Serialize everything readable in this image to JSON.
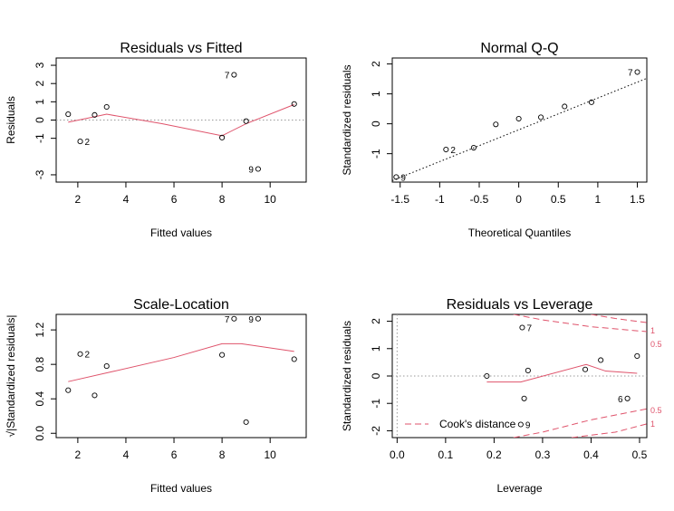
{
  "colors": {
    "smoother": "#DF536B",
    "cook": "#DF536B",
    "reference": "#9a9a9a",
    "points": "#000000"
  },
  "chart_data": [
    {
      "id": "rvf",
      "type": "scatter",
      "title": "Residuals vs Fitted",
      "xlabel": "Fitted values",
      "ylabel": "Residuals",
      "xlim": [
        1.1,
        11.5
      ],
      "ylim": [
        -3.4,
        3.4
      ],
      "x_ticks": [
        2,
        4,
        6,
        8,
        10
      ],
      "y_ticks": [
        -3,
        -1,
        0,
        1,
        2,
        3
      ],
      "points": [
        {
          "x": 1.6,
          "y": 0.32
        },
        {
          "x": 2.1,
          "y": -1.17
        },
        {
          "x": 2.7,
          "y": 0.28
        },
        {
          "x": 3.2,
          "y": 0.72
        },
        {
          "x": 8.0,
          "y": -0.96
        },
        {
          "x": 8.5,
          "y": 2.48
        },
        {
          "x": 9.0,
          "y": -0.06
        },
        {
          "x": 9.5,
          "y": -2.68
        },
        {
          "x": 11.0,
          "y": 0.88
        }
      ],
      "labeled_points": [
        {
          "x": 8.5,
          "y": 2.48,
          "label": "7",
          "side": "left"
        },
        {
          "x": 2.1,
          "y": -1.17,
          "label": "2",
          "side": "right"
        },
        {
          "x": 9.5,
          "y": -2.68,
          "label": "9",
          "side": "left"
        }
      ],
      "smoother": {
        "x": [
          1.6,
          3.2,
          5.5,
          8.0,
          9.0,
          11.0
        ],
        "y": [
          -0.12,
          0.32,
          -0.2,
          -0.86,
          -0.2,
          0.85
        ]
      },
      "reference_line_y": 0
    },
    {
      "id": "qq",
      "type": "scatter",
      "title": "Normal Q-Q",
      "xlabel": "Theoretical Quantiles",
      "ylabel": "Standardized residuals",
      "xlim": [
        -1.6,
        1.62
      ],
      "ylim": [
        -1.95,
        2.2
      ],
      "x_ticks": [
        -1.5,
        -1.0,
        -0.5,
        0.0,
        0.5,
        1.0,
        1.5
      ],
      "y_ticks": [
        -1,
        0,
        1,
        2
      ],
      "points": [
        {
          "x": -1.55,
          "y": -1.78
        },
        {
          "x": -0.92,
          "y": -0.86
        },
        {
          "x": -0.57,
          "y": -0.8
        },
        {
          "x": -0.29,
          "y": -0.02
        },
        {
          "x": 0.0,
          "y": 0.17
        },
        {
          "x": 0.28,
          "y": 0.22
        },
        {
          "x": 0.58,
          "y": 0.58
        },
        {
          "x": 0.92,
          "y": 0.72
        },
        {
          "x": 1.5,
          "y": 1.73
        }
      ],
      "labeled_points": [
        {
          "x": 1.5,
          "y": 1.73,
          "label": "7",
          "side": "left"
        },
        {
          "x": -0.92,
          "y": -0.86,
          "label": "2",
          "side": "right"
        },
        {
          "x": -1.55,
          "y": -1.78,
          "label": "9",
          "side": "right"
        }
      ],
      "qqline": {
        "x": [
          -1.6,
          1.62
        ],
        "y": [
          -1.9,
          1.52
        ]
      }
    },
    {
      "id": "sl",
      "type": "scatter",
      "title": "Scale-Location",
      "xlabel": "Fitted values",
      "ylabel": "√|Standardized residuals|",
      "xlim": [
        1.1,
        11.5
      ],
      "ylim": [
        -0.05,
        1.38
      ],
      "x_ticks": [
        2,
        4,
        6,
        8,
        10
      ],
      "y_ticks": [
        0.0,
        0.4,
        0.8,
        1.2
      ],
      "y_tick_labels": [
        "0.0",
        "0.4",
        "0.8",
        "1.2"
      ],
      "points": [
        {
          "x": 1.6,
          "y": 0.5
        },
        {
          "x": 2.1,
          "y": 0.92
        },
        {
          "x": 2.7,
          "y": 0.44
        },
        {
          "x": 3.2,
          "y": 0.78
        },
        {
          "x": 8.0,
          "y": 0.91
        },
        {
          "x": 8.5,
          "y": 1.33
        },
        {
          "x": 9.0,
          "y": 0.13
        },
        {
          "x": 9.5,
          "y": 1.33
        },
        {
          "x": 11.0,
          "y": 0.86
        }
      ],
      "labeled_points": [
        {
          "x": 8.5,
          "y": 1.33,
          "label": "7",
          "side": "left"
        },
        {
          "x": 2.1,
          "y": 0.92,
          "label": "2",
          "side": "right"
        },
        {
          "x": 9.5,
          "y": 1.33,
          "label": "9",
          "side": "left"
        }
      ],
      "smoother": {
        "x": [
          1.6,
          3.5,
          6.0,
          8.0,
          8.8,
          11.0
        ],
        "y": [
          0.6,
          0.72,
          0.88,
          1.04,
          1.04,
          0.95
        ]
      }
    },
    {
      "id": "rvl",
      "type": "scatter",
      "title": "Residuals vs Leverage",
      "xlabel": "Leverage",
      "ylabel": "Standardized residuals",
      "xlim": [
        -0.01,
        0.515
      ],
      "ylim": [
        -2.25,
        2.25
      ],
      "x_ticks": [
        0.0,
        0.1,
        0.2,
        0.3,
        0.4,
        0.5
      ],
      "x_tick_labels": [
        "0.0",
        "0.1",
        "0.2",
        "0.3",
        "0.4",
        "0.5"
      ],
      "y_ticks": [
        -2,
        -1,
        0,
        1,
        2
      ],
      "points": [
        {
          "x": 0.185,
          "y": 0.0
        },
        {
          "x": 0.258,
          "y": 1.77
        },
        {
          "x": 0.262,
          "y": -0.82
        },
        {
          "x": 0.27,
          "y": 0.2
        },
        {
          "x": 0.388,
          "y": 0.24
        },
        {
          "x": 0.42,
          "y": 0.58
        },
        {
          "x": 0.475,
          "y": -0.82
        },
        {
          "x": 0.495,
          "y": 0.73
        },
        {
          "x": 0.255,
          "y": -1.77
        }
      ],
      "labeled_points": [
        {
          "x": 0.258,
          "y": 1.77,
          "label": "7",
          "side": "right"
        },
        {
          "x": 0.475,
          "y": -0.82,
          "label": "6",
          "side": "left"
        },
        {
          "x": 0.255,
          "y": -1.77,
          "label": "9",
          "side": "right"
        }
      ],
      "smoother": {
        "x": [
          0.185,
          0.255,
          0.39,
          0.43,
          0.495
        ],
        "y": [
          -0.22,
          -0.22,
          0.42,
          0.18,
          0.1
        ]
      },
      "reference_line_y": 0,
      "reference_line_x": 0,
      "cook_lines": [
        {
          "level": "0.5",
          "x": [
            0.24,
            0.3,
            0.4,
            0.515
          ],
          "y": [
            2.25,
            2.05,
            1.8,
            1.62
          ],
          "label_y": 1.15
        },
        {
          "level": "1",
          "x": [
            0.4,
            0.45,
            0.515
          ],
          "y": [
            2.25,
            2.1,
            1.95
          ],
          "label_y": 1.65
        },
        {
          "level": "0.5",
          "x": [
            0.24,
            0.3,
            0.4,
            0.515
          ],
          "y": [
            -2.25,
            -2.05,
            -1.6,
            -1.2
          ],
          "label_y": -1.25
        },
        {
          "level": "1",
          "x": [
            0.36,
            0.45,
            0.515
          ],
          "y": [
            -2.25,
            -2.05,
            -1.75
          ],
          "label_y": -1.75
        }
      ],
      "legend": {
        "label": "Cook's distance",
        "position": "bottom-left"
      }
    }
  ]
}
